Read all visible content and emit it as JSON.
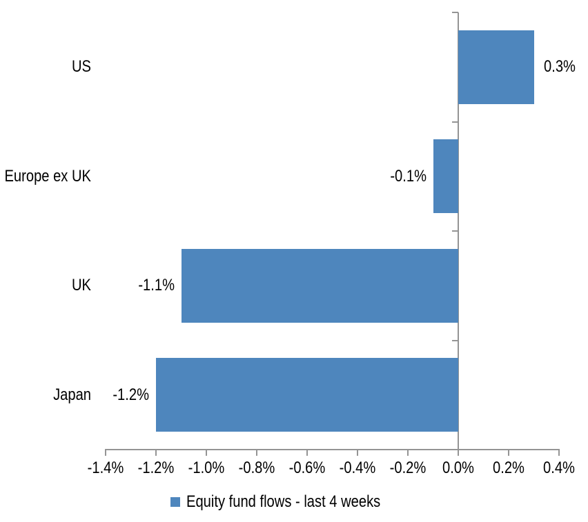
{
  "chart_data": {
    "type": "bar",
    "orientation": "horizontal",
    "title": "",
    "xlabel": "",
    "ylabel": "",
    "categories": [
      "US",
      "Europe ex UK",
      "UK",
      "Japan"
    ],
    "series": [
      {
        "name": "Equity fund flows - last 4 weeks",
        "values": [
          0.3,
          -0.1,
          -1.1,
          -1.2
        ],
        "value_labels": [
          "0.3%",
          "-0.1%",
          "-1.1%",
          "-1.2%"
        ]
      }
    ],
    "xlim": [
      -1.4,
      0.4
    ],
    "x_tick_values": [
      -1.4,
      -1.2,
      -1.0,
      -0.8,
      -0.6,
      -0.4,
      -0.2,
      0.0,
      0.2,
      0.4
    ],
    "x_tick_labels": [
      "-1.4%",
      "-1.2%",
      "-1.0%",
      "-0.8%",
      "-0.6%",
      "-0.4%",
      "-0.2%",
      "0.0%",
      "0.2%",
      "0.4%"
    ],
    "grid": false,
    "legend_position": "bottom",
    "bar_color": "#4E86BD",
    "axis_color": "#949494",
    "text_color": "#000000",
    "background_color": "#FFFFFF"
  },
  "legend": {
    "label": "Equity fund flows - last 4 weeks",
    "swatch_color": "#4E86BD"
  }
}
